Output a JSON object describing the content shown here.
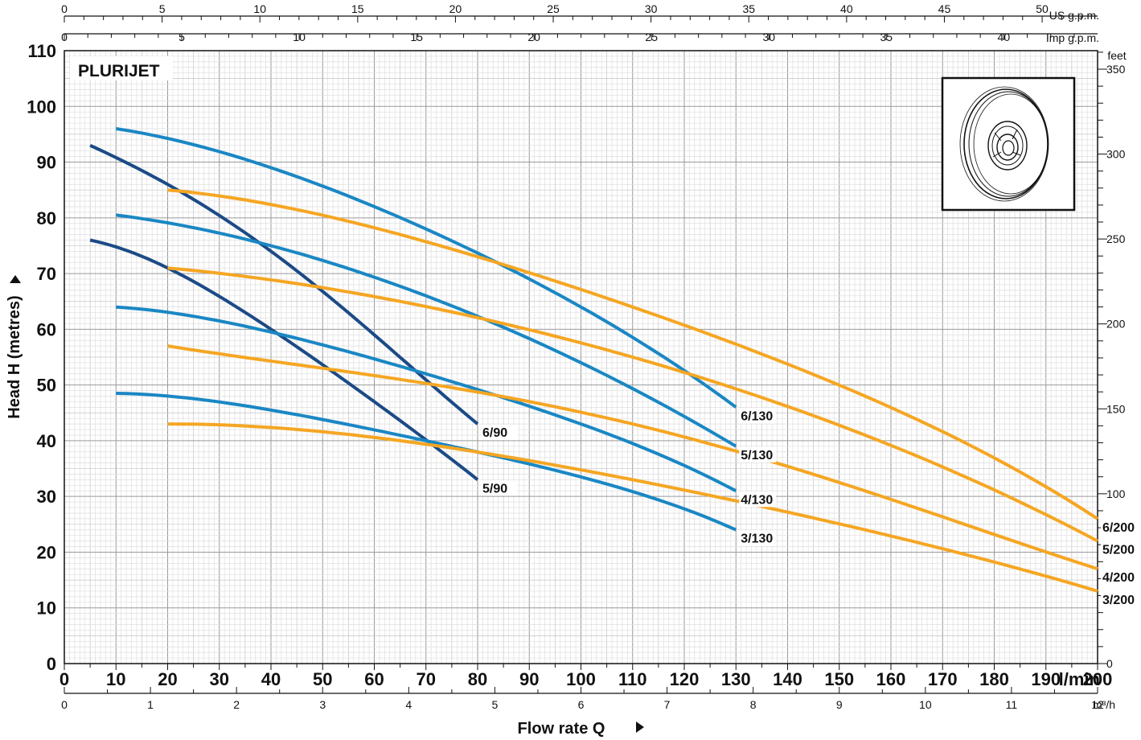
{
  "chart_data": {
    "type": "line",
    "title": "PLURIJET",
    "xlabel": "Flow rate  Q",
    "ylabel": "Head H (metres)",
    "x_unit": "l/min",
    "x_range": [
      0,
      200
    ],
    "ylim": [
      0,
      110
    ],
    "grid": true,
    "y_ticks": [
      0,
      10,
      20,
      30,
      40,
      50,
      60,
      70,
      80,
      90,
      100,
      110
    ],
    "x_ticks": [
      0,
      10,
      20,
      30,
      40,
      50,
      60,
      70,
      80,
      90,
      100,
      110,
      120,
      130,
      140,
      150,
      160,
      170,
      180,
      190,
      200
    ],
    "secondary_axes": {
      "us_gpm": {
        "label": "US g.p.m.",
        "ticks": [
          0,
          5,
          10,
          15,
          20,
          25,
          30,
          35,
          40,
          45,
          50
        ],
        "per_lmin": 0.264172
      },
      "imp_gpm": {
        "label": "Imp g.p.m.",
        "ticks": [
          0,
          5,
          10,
          15,
          20,
          25,
          30,
          35,
          40
        ],
        "per_lmin": 0.219969
      },
      "m3h": {
        "label": "m³/h",
        "ticks": [
          0,
          1,
          2,
          3,
          4,
          5,
          6,
          7,
          8,
          9,
          10,
          11,
          12
        ],
        "per_lmin": 0.06
      },
      "feet": {
        "label": "feet",
        "ticks": [
          0,
          50,
          100,
          150,
          200,
          250,
          300,
          350
        ],
        "per_m": 3.28084
      }
    },
    "series": [
      {
        "name": "6/90",
        "color": "#1b4a86",
        "x": [
          5,
          20,
          40,
          60,
          80
        ],
        "y": [
          93,
          86,
          74,
          59,
          43
        ]
      },
      {
        "name": "5/90",
        "color": "#1b4a86",
        "x": [
          5,
          20,
          40,
          60,
          80
        ],
        "y": [
          76,
          71,
          60,
          47,
          33
        ]
      },
      {
        "name": "6/130",
        "color": "#1a87c4",
        "x": [
          10,
          40,
          70,
          100,
          130
        ],
        "y": [
          96,
          89,
          78,
          64,
          46
        ]
      },
      {
        "name": "5/130",
        "color": "#1a87c4",
        "x": [
          10,
          40,
          70,
          100,
          130
        ],
        "y": [
          80.5,
          75,
          66,
          54,
          39
        ]
      },
      {
        "name": "4/130",
        "color": "#1a87c4",
        "x": [
          10,
          40,
          70,
          100,
          130
        ],
        "y": [
          64,
          59.5,
          52,
          43,
          31
        ]
      },
      {
        "name": "3/130",
        "color": "#1a87c4",
        "x": [
          10,
          40,
          70,
          100,
          130
        ],
        "y": [
          48.5,
          45.5,
          40,
          33.5,
          24
        ]
      },
      {
        "name": "6/200",
        "color": "#f5a623",
        "x": [
          20,
          65,
          110,
          155,
          200
        ],
        "y": [
          85,
          77,
          64,
          48,
          26
        ]
      },
      {
        "name": "5/200",
        "color": "#f5a623",
        "x": [
          20,
          65,
          110,
          155,
          200
        ],
        "y": [
          71,
          65,
          55,
          41,
          22
        ]
      },
      {
        "name": "4/200",
        "color": "#f5a623",
        "x": [
          20,
          65,
          110,
          155,
          200
        ],
        "y": [
          57,
          51,
          43,
          31,
          17
        ]
      },
      {
        "name": "3/200",
        "color": "#f5a623",
        "x": [
          20,
          65,
          110,
          155,
          200
        ],
        "y": [
          43,
          40,
          33,
          24,
          13
        ]
      }
    ]
  },
  "image_icon": "impeller-drawing"
}
